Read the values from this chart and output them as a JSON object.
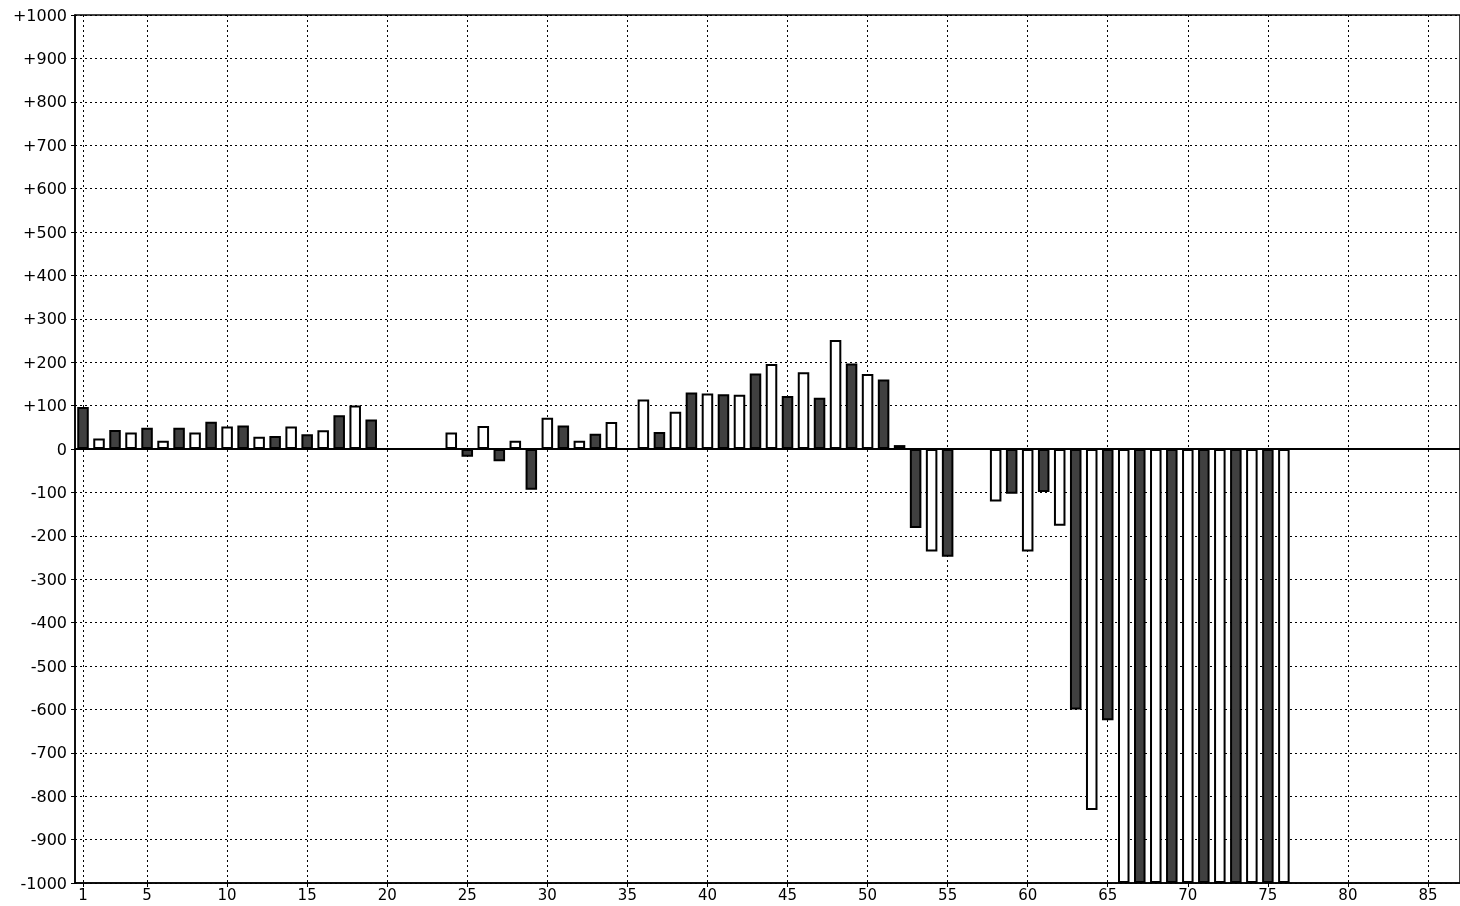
{
  "chart_data": {
    "type": "bar",
    "x": [
      1,
      2,
      3,
      4,
      5,
      6,
      7,
      8,
      9,
      10,
      11,
      12,
      13,
      14,
      15,
      16,
      17,
      18,
      19,
      24,
      25,
      26,
      27,
      28,
      29,
      30,
      31,
      32,
      33,
      34,
      36,
      37,
      38,
      39,
      40,
      41,
      42,
      43,
      44,
      45,
      46,
      47,
      48,
      49,
      50,
      51,
      52,
      53,
      54,
      55,
      58,
      59,
      60,
      61,
      62,
      63,
      64,
      65,
      66,
      67,
      68,
      69,
      70,
      71,
      72,
      73,
      74,
      75,
      76
    ],
    "values": [
      97,
      24,
      44,
      38,
      49,
      19,
      49,
      38,
      63,
      52,
      54,
      28,
      30,
      52,
      34,
      43,
      78,
      100,
      68,
      38,
      -18,
      53,
      -28,
      19,
      -94,
      72,
      54,
      19,
      35,
      62,
      114,
      39,
      86,
      130,
      128,
      126,
      125,
      174,
      196,
      122,
      177,
      118,
      251,
      197,
      173,
      160,
      9,
      -182,
      -236,
      -248,
      -121,
      -103,
      -236,
      -99,
      -177,
      -600,
      -832,
      -625,
      -1000,
      -1000,
      -1000,
      -1000,
      -1000,
      -1000,
      -1000,
      -1000,
      -1000,
      -1000,
      -1000
    ],
    "colors": [
      "#404040",
      "#ffffff",
      "#404040",
      "#ffffff",
      "#404040",
      "#ffffff",
      "#404040",
      "#ffffff",
      "#404040",
      "#ffffff",
      "#404040",
      "#ffffff",
      "#404040",
      "#ffffff",
      "#404040",
      "#ffffff",
      "#404040",
      "#ffffff",
      "#404040",
      "#ffffff",
      "#404040",
      "#ffffff",
      "#404040",
      "#ffffff",
      "#404040",
      "#ffffff",
      "#404040",
      "#ffffff",
      "#404040",
      "#ffffff",
      "#ffffff",
      "#404040",
      "#ffffff",
      "#404040",
      "#ffffff",
      "#404040",
      "#ffffff",
      "#404040",
      "#ffffff",
      "#404040",
      "#ffffff",
      "#404040",
      "#ffffff",
      "#404040",
      "#ffffff",
      "#404040",
      "#ffffff",
      "#404040",
      "#ffffff",
      "#404040",
      "#ffffff",
      "#404040",
      "#ffffff",
      "#404040",
      "#ffffff",
      "#404040",
      "#ffffff",
      "#404040",
      "#ffffff",
      "#404040",
      "#ffffff",
      "#404040",
      "#ffffff",
      "#404040",
      "#ffffff",
      "#404040",
      "#ffffff",
      "#404040",
      "#ffffff"
    ],
    "xlim": [
      0.5,
      87
    ],
    "xticks": [
      1,
      5,
      10,
      15,
      20,
      25,
      30,
      35,
      40,
      45,
      50,
      55,
      60,
      65,
      70,
      75,
      80,
      85
    ],
    "ylim": [
      -1000,
      1000
    ],
    "yticks": [
      -1000,
      -900,
      -800,
      -700,
      -600,
      -500,
      -400,
      -300,
      -200,
      -100,
      0,
      {
        "value": 100,
        "label": "+100"
      },
      {
        "value": 200,
        "label": "+200"
      },
      {
        "value": 300,
        "label": "+300"
      },
      {
        "value": 400,
        "label": "+400"
      },
      {
        "value": 500,
        "label": "+500"
      },
      {
        "value": 600,
        "label": "+600"
      },
      {
        "value": 700,
        "label": "+700"
      },
      {
        "value": 800,
        "label": "+800"
      },
      {
        "value": 900,
        "label": "+900"
      },
      {
        "value": 1000,
        "label": "+1000"
      }
    ],
    "grid": true
  }
}
